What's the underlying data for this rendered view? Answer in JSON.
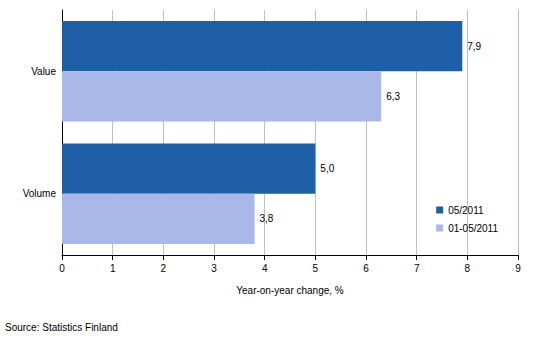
{
  "chart_data": {
    "type": "bar",
    "orientation": "horizontal",
    "categories": [
      "Value",
      "Volume"
    ],
    "series": [
      {
        "name": "05/2011",
        "color": "#1f5fa8",
        "values": [
          7.9,
          5.0
        ],
        "value_labels": [
          "7,9",
          "5,0"
        ]
      },
      {
        "name": "01-05/2011",
        "color": "#a9b8e8",
        "values": [
          6.3,
          3.8
        ],
        "value_labels": [
          "6,3",
          "3,8"
        ]
      }
    ],
    "x_label": "Year-on-year change, %",
    "xlim": [
      0,
      9
    ],
    "xticks": [
      0,
      1,
      2,
      3,
      4,
      5,
      6,
      7,
      8,
      9
    ],
    "grid": true,
    "data_labels": true,
    "legend": "lower right",
    "annotations": [
      "Source: Statistics Finland"
    ]
  }
}
